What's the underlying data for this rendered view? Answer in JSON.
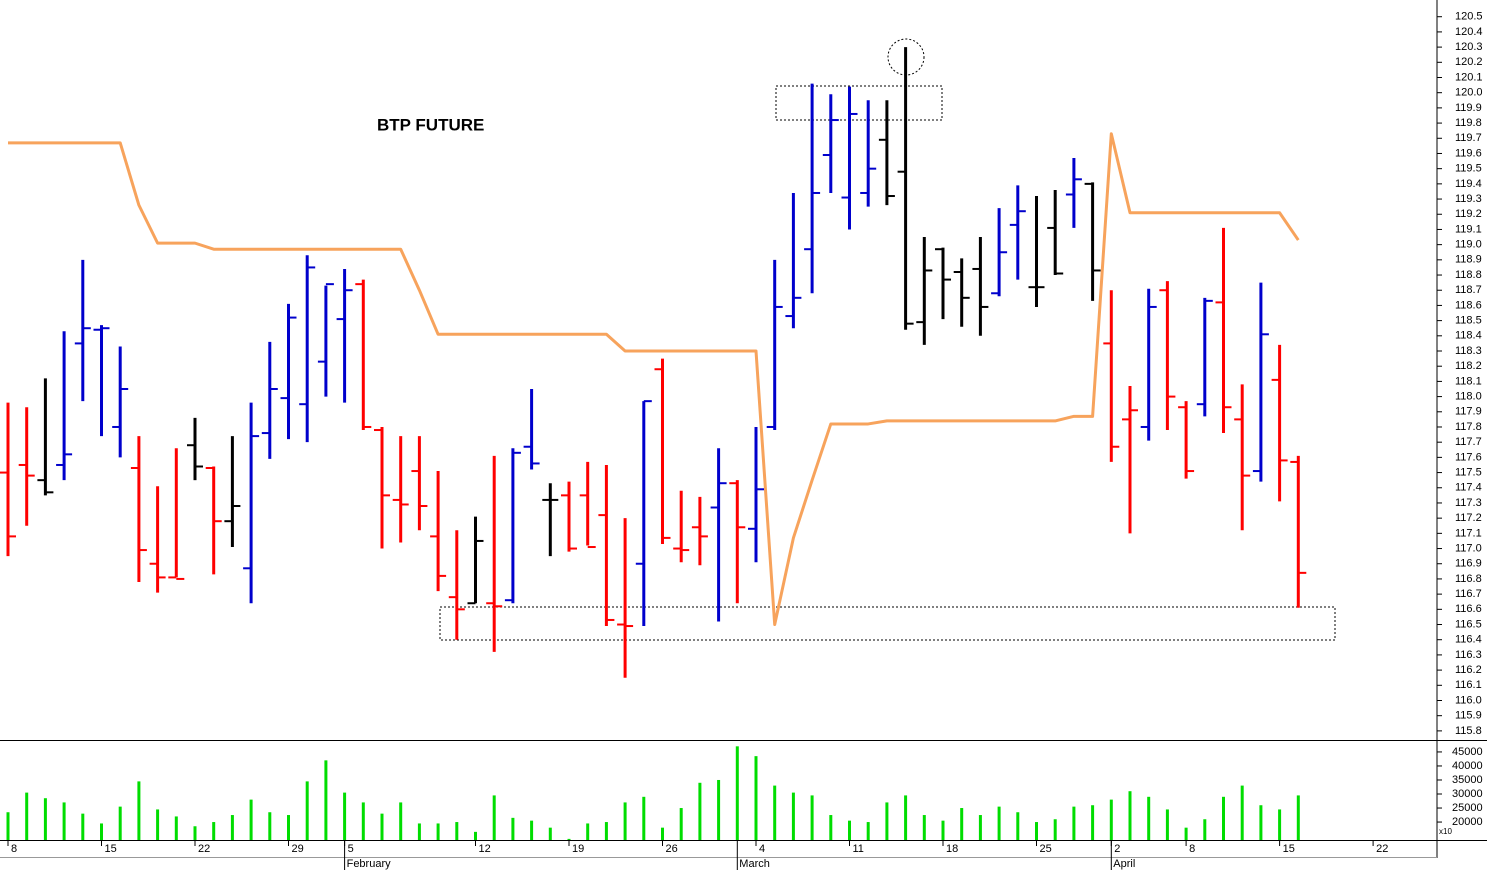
{
  "chart_data": {
    "type": "ohlc",
    "title": "BTP FUTURE",
    "categories": [
      "8",
      null,
      null,
      null,
      null,
      "15",
      null,
      null,
      null,
      null,
      "22",
      null,
      null,
      null,
      null,
      "29",
      null,
      null,
      "5",
      null,
      null,
      null,
      null,
      null,
      null,
      "12",
      null,
      null,
      null,
      null,
      "19",
      null,
      null,
      null,
      null,
      "26",
      null,
      null,
      null,
      null,
      "4",
      null,
      null,
      null,
      null,
      "11",
      null,
      null,
      null,
      null,
      "18",
      null,
      null,
      null,
      null,
      "25",
      null,
      null,
      null,
      "2",
      null,
      null,
      null,
      "8",
      null,
      null,
      null,
      null,
      "15",
      null,
      null,
      null,
      null,
      "22",
      null,
      null,
      null
    ],
    "month_labels": [
      null,
      null,
      null,
      null,
      null,
      null,
      null,
      null,
      null,
      null,
      null,
      null,
      null,
      null,
      null,
      null,
      null,
      null,
      "February",
      null,
      null,
      null,
      null,
      null,
      null,
      null,
      null,
      null,
      null,
      null,
      null,
      null,
      null,
      null,
      null,
      null,
      null,
      null,
      null,
      "March",
      null,
      null,
      null,
      null,
      null,
      null,
      null,
      null,
      null,
      null,
      null,
      null,
      null,
      null,
      null,
      null,
      null,
      null,
      null,
      "April",
      null,
      null,
      null,
      null,
      null,
      null,
      null,
      null,
      null,
      null,
      null,
      null,
      null,
      null,
      null,
      null,
      null
    ],
    "open": [
      117.5,
      117.55,
      117.45,
      117.55,
      118.35,
      118.44,
      117.8,
      117.53,
      116.9,
      116.81,
      117.68,
      117.53,
      117.18,
      116.87,
      117.76,
      117.99,
      117.95,
      118.23,
      118.51,
      118.74,
      117.78,
      117.32,
      117.51,
      117.08,
      116.68,
      116.64,
      116.64,
      116.66,
      117.67,
      117.32,
      117.35,
      117.35,
      117.22,
      116.5,
      116.9,
      118.18,
      117.0,
      117.14,
      117.27,
      117.43,
      117.13,
      117.8,
      118.53,
      118.97,
      119.59,
      119.31,
      119.34,
      119.69,
      119.48,
      118.49,
      118.97,
      118.82,
      118.84,
      118.68,
      119.13,
      118.72,
      119.11,
      119.33,
      119.4,
      118.35,
      117.85,
      117.8,
      118.7,
      117.93,
      117.95,
      118.62,
      117.85,
      117.51,
      118.11,
      117.57,
      null,
      null,
      null,
      null,
      null,
      null,
      null
    ],
    "high": [
      117.96,
      117.93,
      118.12,
      118.43,
      118.9,
      118.47,
      118.33,
      117.74,
      117.41,
      117.66,
      117.86,
      117.54,
      117.74,
      117.96,
      118.36,
      118.61,
      118.93,
      118.73,
      118.84,
      118.77,
      117.8,
      117.74,
      117.74,
      117.51,
      117.12,
      117.21,
      117.61,
      117.66,
      118.05,
      117.43,
      117.44,
      117.57,
      117.55,
      117.2,
      117.97,
      118.25,
      117.38,
      117.34,
      117.66,
      117.45,
      117.8,
      118.9,
      119.34,
      120.06,
      119.99,
      120.04,
      119.95,
      119.95,
      120.3,
      119.05,
      118.98,
      118.91,
      119.05,
      119.24,
      119.39,
      119.32,
      119.36,
      119.57,
      119.41,
      118.7,
      118.07,
      118.71,
      118.76,
      117.97,
      118.65,
      119.11,
      118.08,
      118.75,
      118.34,
      117.61,
      null,
      null,
      null,
      null,
      null,
      null,
      null
    ],
    "low": [
      116.95,
      117.15,
      117.35,
      117.45,
      117.97,
      117.74,
      117.6,
      116.78,
      116.71,
      116.81,
      117.45,
      116.83,
      117.01,
      116.64,
      117.59,
      117.72,
      117.7,
      118.0,
      117.96,
      117.78,
      117.0,
      117.04,
      117.12,
      116.72,
      116.4,
      116.64,
      116.32,
      116.64,
      117.52,
      116.95,
      116.98,
      117.02,
      116.49,
      116.15,
      116.49,
      117.03,
      116.91,
      116.89,
      116.52,
      116.64,
      116.91,
      117.78,
      118.45,
      118.68,
      119.34,
      119.1,
      119.25,
      119.26,
      118.44,
      118.34,
      118.51,
      118.46,
      118.4,
      118.66,
      118.77,
      118.59,
      118.8,
      119.11,
      118.63,
      117.57,
      117.1,
      117.71,
      117.78,
      117.46,
      117.87,
      117.76,
      117.12,
      117.44,
      117.31,
      116.61,
      null,
      null,
      null,
      null,
      null,
      null,
      null
    ],
    "close": [
      117.08,
      117.48,
      117.37,
      117.62,
      118.45,
      118.45,
      118.05,
      116.99,
      116.81,
      116.8,
      117.54,
      117.18,
      117.28,
      117.74,
      118.05,
      118.52,
      118.85,
      118.74,
      118.7,
      117.8,
      117.35,
      117.29,
      117.28,
      116.82,
      116.6,
      117.05,
      116.62,
      117.63,
      117.56,
      117.32,
      117.0,
      117.01,
      116.53,
      116.49,
      117.97,
      117.07,
      116.99,
      117.08,
      117.43,
      117.14,
      117.39,
      118.59,
      118.65,
      119.34,
      119.82,
      119.86,
      119.5,
      119.32,
      118.48,
      118.83,
      118.77,
      118.65,
      118.59,
      118.95,
      119.22,
      118.72,
      118.81,
      119.43,
      118.83,
      117.67,
      117.91,
      118.59,
      118.0,
      117.51,
      118.63,
      117.93,
      117.48,
      118.41,
      117.58,
      116.84,
      null,
      null,
      null,
      null,
      null,
      null,
      null
    ],
    "colors": [
      "#ff0000",
      "#ff0000",
      "#000000",
      "#0000cc",
      "#0000cc",
      "#0000cc",
      "#0000cc",
      "#ff0000",
      "#ff0000",
      "#ff0000",
      "#000000",
      "#ff0000",
      "#000000",
      "#0000cc",
      "#0000cc",
      "#0000cc",
      "#0000cc",
      "#0000cc",
      "#0000cc",
      "#ff0000",
      "#ff0000",
      "#ff0000",
      "#ff0000",
      "#ff0000",
      "#ff0000",
      "#000000",
      "#ff0000",
      "#0000cc",
      "#0000cc",
      "#000000",
      "#ff0000",
      "#ff0000",
      "#ff0000",
      "#ff0000",
      "#0000cc",
      "#ff0000",
      "#ff0000",
      "#ff0000",
      "#0000cc",
      "#ff0000",
      "#0000cc",
      "#0000cc",
      "#0000cc",
      "#0000cc",
      "#0000cc",
      "#0000cc",
      "#0000cc",
      "#000000",
      "#000000",
      "#000000",
      "#000000",
      "#000000",
      "#000000",
      "#0000cc",
      "#0000cc",
      "#000000",
      "#000000",
      "#0000cc",
      "#000000",
      "#ff0000",
      "#ff0000",
      "#0000cc",
      "#ff0000",
      "#ff0000",
      "#0000cc",
      "#ff0000",
      "#ff0000",
      "#0000cc",
      "#ff0000",
      "#ff0000",
      null,
      null,
      null,
      null,
      null,
      null,
      null
    ],
    "overlay": {
      "color": "#f7a35c",
      "values": [
        119.67,
        119.67,
        119.67,
        119.67,
        119.67,
        119.67,
        119.67,
        119.26,
        119.01,
        119.01,
        119.01,
        118.97,
        118.97,
        118.97,
        118.97,
        118.97,
        118.97,
        118.97,
        118.97,
        118.97,
        118.97,
        118.97,
        118.7,
        118.41,
        118.41,
        118.41,
        118.41,
        118.41,
        118.41,
        118.41,
        118.41,
        118.41,
        118.41,
        118.3,
        118.3,
        118.3,
        118.3,
        118.3,
        118.3,
        118.3,
        118.3,
        116.5,
        117.07,
        117.45,
        117.82,
        117.82,
        117.82,
        117.84,
        117.84,
        117.84,
        117.84,
        117.84,
        117.84,
        117.84,
        117.84,
        117.84,
        117.84,
        117.87,
        117.87,
        119.73,
        119.21,
        119.21,
        119.21,
        119.21,
        119.21,
        119.21,
        119.21,
        119.21,
        119.21,
        119.03,
        null,
        null,
        null,
        null,
        null,
        null,
        null
      ]
    },
    "ylim": [
      115.74,
      120.61
    ],
    "yticks": [
      115.8,
      115.9,
      {
        "value": 116.0,
        "label": "116.0"
      },
      116.1,
      116.2,
      116.3,
      116.4,
      116.5,
      116.6,
      116.7,
      116.8,
      116.9,
      {
        "value": 117.0,
        "label": "117.0"
      },
      117.1,
      117.2,
      117.3,
      117.4,
      117.5,
      117.6,
      117.7,
      117.8,
      117.9,
      {
        "value": 118.0,
        "label": "118.0"
      },
      118.1,
      118.2,
      118.3,
      118.4,
      118.5,
      118.6,
      118.7,
      118.8,
      118.9,
      {
        "value": 119.0,
        "label": "119.0"
      },
      119.1,
      119.2,
      119.3,
      119.4,
      119.5,
      119.6,
      119.7,
      119.8,
      119.9,
      {
        "value": 120.0,
        "label": "120.0"
      },
      120.1,
      120.2,
      120.3,
      120.4,
      120.5
    ],
    "volume": {
      "type": "bar",
      "color": "#00dd00",
      "unit_label": "x10",
      "values": [
        23500,
        30500,
        28500,
        27000,
        23000,
        19500,
        25500,
        34500,
        24500,
        22000,
        18500,
        20000,
        22500,
        28000,
        23500,
        22500,
        34500,
        42000,
        30500,
        27000,
        23000,
        27000,
        19500,
        19500,
        20000,
        16500,
        29500,
        21500,
        20500,
        18000,
        14000,
        19500,
        20000,
        27000,
        29000,
        18000,
        25000,
        34000,
        35000,
        47000,
        43500,
        33000,
        30500,
        29500,
        22500,
        20500,
        20000,
        27000,
        29500,
        22500,
        20500,
        25000,
        22500,
        25500,
        23500,
        20000,
        21000,
        25500,
        26000,
        28000,
        31000,
        29000,
        24500,
        18000,
        21000,
        29000,
        33000,
        26000,
        24500,
        29500,
        null,
        null,
        null,
        null,
        null,
        null,
        null
      ],
      "ylim": [
        13600,
        48900
      ],
      "yticks": [
        20000,
        25000,
        30000,
        35000,
        40000,
        45000
      ]
    }
  }
}
